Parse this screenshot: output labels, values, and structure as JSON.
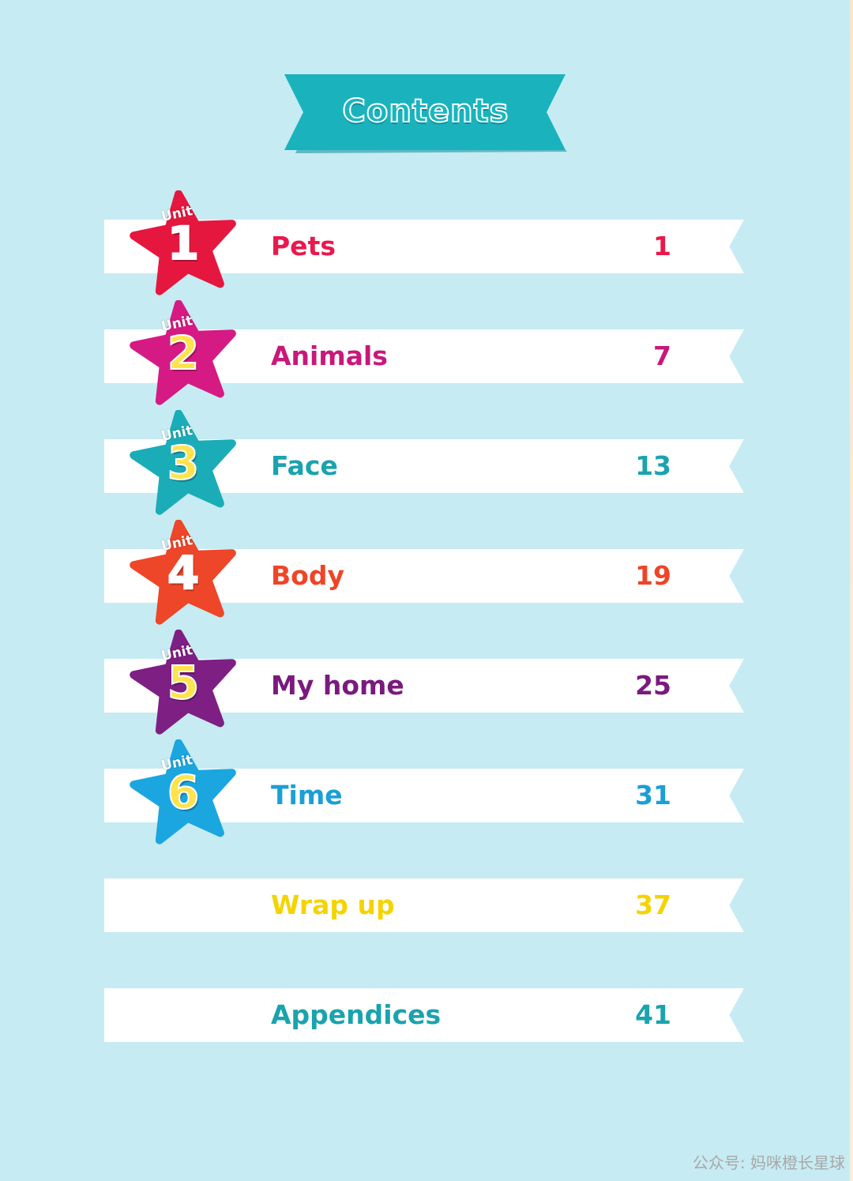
{
  "header": {
    "title": "Contents",
    "banner_color": "#1ab3bd"
  },
  "badge_word": "Unit",
  "rows": [
    {
      "title": "Pets",
      "page": "1",
      "unit_number": "1",
      "title_color": "#e8194d",
      "page_color": "#e8194d",
      "badge_color": "#e5173f",
      "number_color": "#ffffff"
    },
    {
      "title": "Animals",
      "page": "7",
      "unit_number": "2",
      "title_color": "#c8187a",
      "page_color": "#c8187a",
      "badge_color": "#d61a83",
      "number_color": "#ffe34d"
    },
    {
      "title": "Face",
      "page": "13",
      "unit_number": "3",
      "title_color": "#1aa3ae",
      "page_color": "#1aa3ae",
      "badge_color": "#1aadb8",
      "number_color": "#ffe34d"
    },
    {
      "title": "Body",
      "page": "19",
      "unit_number": "4",
      "title_color": "#ee4527",
      "page_color": "#ee4527",
      "badge_color": "#ee4628",
      "number_color": "#ffffff"
    },
    {
      "title": "My home",
      "page": "25",
      "unit_number": "5",
      "title_color": "#7a1a7e",
      "page_color": "#7a1a7e",
      "badge_color": "#7e1f84",
      "number_color": "#ffe34d"
    },
    {
      "title": "Time",
      "page": "31",
      "unit_number": "6",
      "title_color": "#1b9fd6",
      "page_color": "#1b9fd6",
      "badge_color": "#1ba6e0",
      "number_color": "#ffe34d"
    },
    {
      "title": "Wrap up",
      "page": "37",
      "title_color": "#f4d400",
      "page_color": "#f4d400"
    },
    {
      "title": "Appendices",
      "page": "41",
      "title_color": "#1aa3ae",
      "page_color": "#1aa3ae"
    }
  ],
  "watermark": "公众号:  妈咪橙长星球"
}
